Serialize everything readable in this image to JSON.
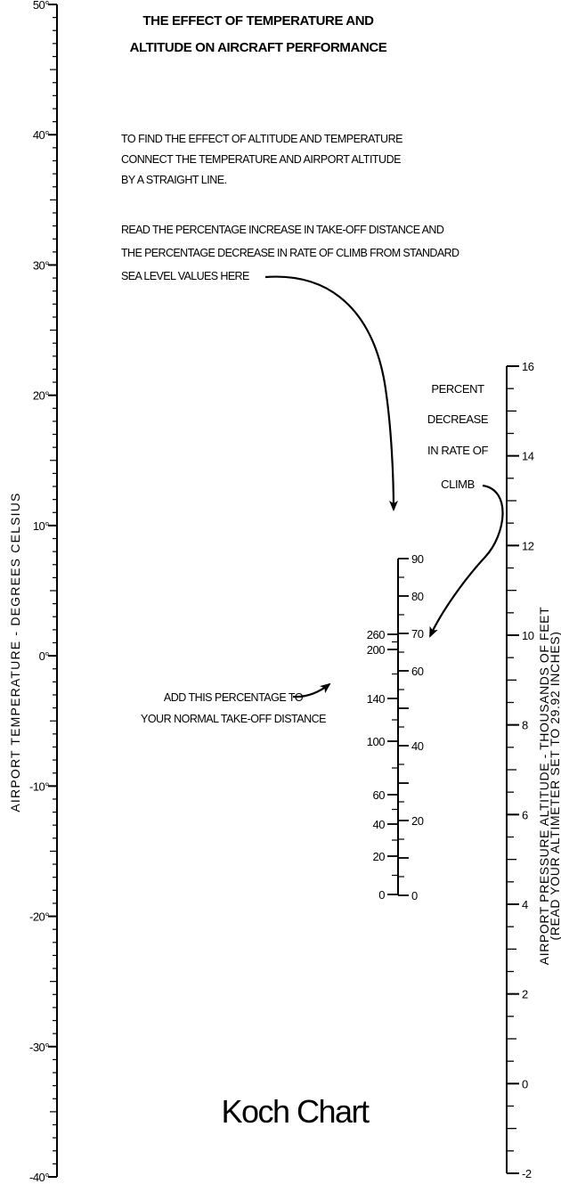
{
  "title": {
    "line1": "THE EFFECT OF TEMPERATURE AND",
    "line2": "ALTITUDE ON AIRCRAFT PERFORMANCE"
  },
  "instructions": {
    "para1": [
      "TO FIND THE EFFECT OF ALTITUDE AND TEMPERATURE",
      "CONNECT THE TEMPERATURE AND AIRPORT ALTITUDE",
      "BY A STRAIGHT LINE."
    ],
    "para2": [
      "READ THE PERCENTAGE INCREASE IN TAKE-OFF DISTANCE AND",
      "THE PERCENTAGE DECREASE IN RATE OF CLIMB FROM STANDARD",
      "SEA LEVEL VALUES HERE"
    ]
  },
  "climb_note": [
    "PERCENT",
    "DECREASE",
    "IN RATE OF",
    "CLIMB"
  ],
  "takeoff_note": [
    "ADD THIS PERCENTAGE TO",
    "YOUR NORMAL TAKE-OFF DISTANCE"
  ],
  "temperature_scale": {
    "label": "AIRPORT TEMPERATURE - DEGREES CELSIUS",
    "ticks": [
      "50°",
      "40°",
      "30°",
      "20°",
      "10°",
      "0°",
      "-10°",
      "-20°",
      "-30°",
      "-40°"
    ]
  },
  "altitude_scale": {
    "label_line1": "AIRPORT PRESSURE ALTITUDE - THOUSANDS OF FEET",
    "label_line2": "(READ YOUR ALTIMETER SET TO 29.92 INCHES)",
    "ticks": [
      "16",
      "14",
      "12",
      "10",
      "8",
      "6",
      "4",
      "2",
      "0",
      "-2"
    ]
  },
  "center_scale": {
    "climb_labels": [
      "90",
      "80",
      "70",
      "60",
      "40",
      "20",
      "0"
    ],
    "takeoff_labels": [
      "260",
      "200",
      "140",
      "100",
      "60",
      "40",
      "20",
      "0"
    ]
  },
  "footer": {
    "name": "Koch Chart"
  }
}
